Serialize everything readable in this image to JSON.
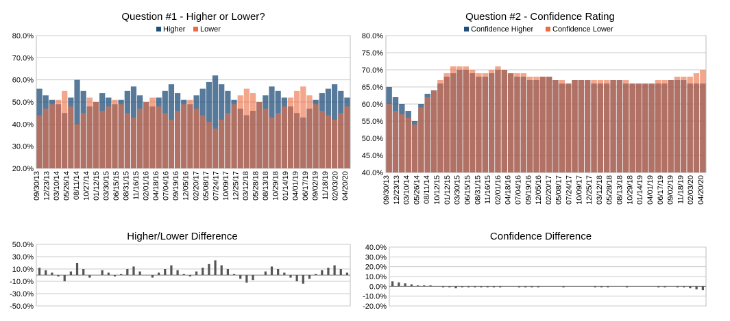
{
  "charts": {
    "q1": {
      "title": "Question #1 - Higher or Lower?",
      "legend": [
        "Higher",
        "Lower"
      ],
      "colors": [
        "#1f4e79",
        "#ed6b3f"
      ],
      "yticks": [
        "80.0%",
        "70.0%",
        "60.0%",
        "50.0%",
        "40.0%",
        "30.0%",
        "20.0%"
      ],
      "xticks": [
        "09/30/13",
        "12/23/13",
        "03/10/14",
        "05/26/14",
        "08/11/14",
        "10/27/14",
        "01/12/15",
        "03/30/15",
        "06/15/15",
        "08/31/15",
        "11/16/15",
        "02/01/16",
        "04/18/16",
        "07/04/16",
        "09/19/16",
        "12/05/16",
        "02/20/17",
        "05/08/17",
        "07/24/17",
        "10/09/17",
        "12/25/17",
        "03/12/18",
        "05/28/18",
        "08/13/18",
        "10/29/18",
        "01/14/19",
        "04/01/19",
        "06/17/19",
        "09/02/19",
        "11/18/19",
        "02/03/20",
        "04/20/20"
      ]
    },
    "q2": {
      "title": "Question #2 - Confidence Rating",
      "legend": [
        "Confidence Higher",
        "Confidence Lower"
      ],
      "colors": [
        "#1f4e79",
        "#ed6b3f"
      ],
      "yticks": [
        "80.0%",
        "75.0%",
        "70.0%",
        "65.0%",
        "60.0%",
        "55.0%",
        "50.0%",
        "45.0%",
        "40.0%"
      ],
      "xticks": [
        "09/30/13",
        "12/23/13",
        "03/10/14",
        "05/26/14",
        "08/11/14",
        "10/12/15",
        "01/12/15",
        "03/30/15",
        "06/15/15",
        "08/31/15",
        "11/16/15",
        "02/01/16",
        "04/18/16",
        "07/04/16",
        "09/19/16",
        "12/05/16",
        "02/20/17",
        "05/08/17",
        "07/24/17",
        "10/09/17",
        "12/25/17",
        "03/12/18",
        "05/28/18",
        "08/13/18",
        "10/29/18",
        "01/14/19",
        "04/01/19",
        "06/17/19",
        "09/02/19",
        "11/18/19",
        "02/03/20",
        "04/20/20"
      ]
    },
    "d1": {
      "title": "Higher/Lower Difference",
      "yticks": [
        "50.0%",
        "30.0%",
        "10.0%",
        "-10.0%",
        "-30.0%",
        "-50.0%"
      ]
    },
    "d2": {
      "title": "Confidence Difference",
      "yticks": [
        "40.0%",
        "30.0%",
        "20.0%",
        "10.0%",
        "0.0%",
        "-10.0%",
        "-20.0%"
      ]
    }
  },
  "chart_data": [
    {
      "type": "bar",
      "title": "Question #1 - Higher or Lower?",
      "ylim": [
        20,
        80
      ],
      "series": [
        {
          "name": "Higher",
          "color": "#1f4e79",
          "values": [
            56,
            53,
            51,
            49,
            45,
            52,
            60,
            55,
            48,
            50,
            54,
            52,
            49,
            51,
            55,
            57,
            53,
            50,
            48,
            52,
            55,
            58,
            54,
            51,
            49,
            53,
            56,
            59,
            62,
            58,
            55,
            51,
            47,
            44,
            46,
            50,
            53,
            57,
            55,
            52,
            48,
            45,
            43,
            47,
            51,
            54,
            56,
            58,
            55,
            52
          ]
        },
        {
          "name": "Lower",
          "color": "#ed6b3f",
          "values": [
            44,
            47,
            49,
            51,
            55,
            48,
            40,
            45,
            52,
            50,
            46,
            48,
            51,
            49,
            45,
            43,
            47,
            50,
            52,
            48,
            45,
            42,
            46,
            49,
            51,
            47,
            44,
            41,
            38,
            42,
            45,
            49,
            53,
            56,
            54,
            50,
            47,
            43,
            45,
            48,
            52,
            55,
            57,
            53,
            49,
            46,
            44,
            42,
            45,
            48
          ]
        }
      ]
    },
    {
      "type": "bar",
      "title": "Question #2 - Confidence Rating",
      "ylim": [
        40,
        80
      ],
      "series": [
        {
          "name": "Confidence Higher",
          "color": "#1f4e79",
          "values": [
            65,
            62,
            60,
            58,
            55,
            60,
            63,
            64,
            66,
            68,
            69,
            70,
            70,
            69,
            68,
            68,
            69,
            70,
            70,
            69,
            68,
            68,
            67,
            67,
            68,
            68,
            67,
            66,
            66,
            67,
            67,
            67,
            66,
            66,
            66,
            67,
            67,
            66,
            66,
            66,
            66,
            66,
            66,
            66,
            67,
            67,
            67,
            66,
            66,
            66
          ]
        },
        {
          "name": "Confidence Lower",
          "color": "#ed6b3f",
          "values": [
            60,
            58,
            57,
            56,
            54,
            59,
            62,
            64,
            67,
            69,
            71,
            71,
            71,
            70,
            69,
            69,
            70,
            71,
            70,
            69,
            69,
            69,
            68,
            68,
            68,
            68,
            67,
            67,
            66,
            67,
            67,
            67,
            67,
            67,
            67,
            67,
            67,
            67,
            66,
            66,
            66,
            66,
            67,
            67,
            67,
            68,
            68,
            68,
            69,
            70
          ]
        }
      ]
    },
    {
      "type": "bar",
      "title": "Higher/Lower Difference",
      "ylim": [
        -50,
        50
      ],
      "series": [
        {
          "name": "",
          "color": "#555555",
          "values": [
            12,
            8,
            4,
            -2,
            -10,
            6,
            20,
            10,
            -4,
            0,
            8,
            4,
            -2,
            2,
            10,
            14,
            6,
            0,
            -4,
            4,
            10,
            16,
            8,
            2,
            -2,
            6,
            12,
            18,
            24,
            16,
            10,
            2,
            -6,
            -12,
            -8,
            0,
            6,
            14,
            10,
            4,
            -4,
            -10,
            -14,
            -6,
            2,
            8,
            12,
            16,
            10,
            4
          ]
        }
      ]
    },
    {
      "type": "bar",
      "title": "Confidence Difference",
      "ylim": [
        -20,
        40
      ],
      "series": [
        {
          "name": "",
          "color": "#555555",
          "values": [
            5,
            4,
            3,
            2,
            1,
            1,
            1,
            0,
            -1,
            -1,
            -2,
            -1,
            -1,
            -1,
            -1,
            -1,
            -1,
            -1,
            0,
            0,
            -1,
            -1,
            -1,
            -1,
            0,
            0,
            0,
            -1,
            0,
            0,
            0,
            0,
            -1,
            -1,
            -1,
            0,
            0,
            -1,
            0,
            0,
            0,
            0,
            -1,
            -1,
            0,
            -1,
            -1,
            -2,
            -3,
            -4
          ]
        }
      ]
    }
  ]
}
